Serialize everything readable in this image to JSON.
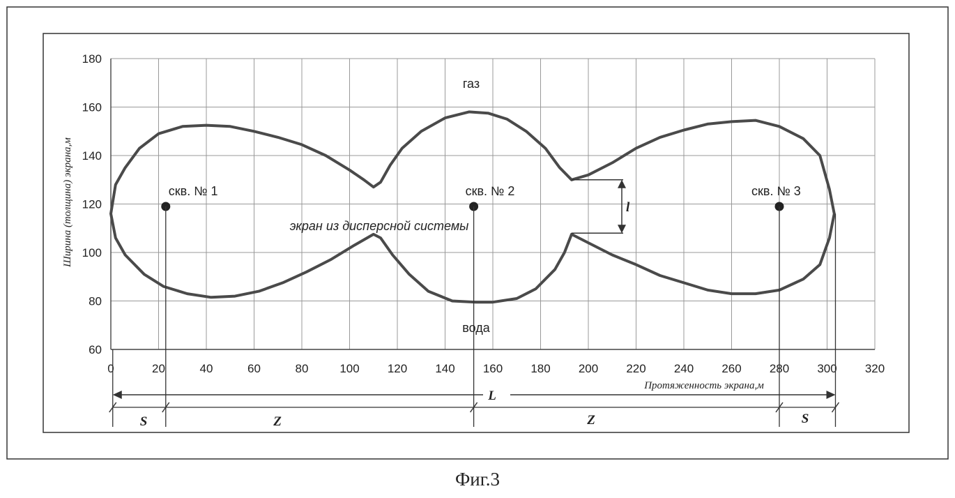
{
  "caption": "Фиг.3",
  "chart_data": {
    "type": "line",
    "xlabel": "Протяженность экрана,м",
    "ylabel": "Ширина (толщина) экрана,м",
    "xlim": [
      0,
      320
    ],
    "ylim": [
      60,
      180
    ],
    "xticks": [
      0,
      20,
      40,
      60,
      80,
      100,
      120,
      140,
      160,
      180,
      200,
      220,
      240,
      260,
      280,
      300,
      320
    ],
    "yticks": [
      60,
      80,
      100,
      120,
      140,
      160,
      180
    ],
    "grid": true,
    "outline": {
      "upper": [
        [
          0,
          116
        ],
        [
          2,
          128
        ],
        [
          6,
          135
        ],
        [
          12,
          143
        ],
        [
          20,
          149
        ],
        [
          30,
          152
        ],
        [
          40,
          152.5
        ],
        [
          50,
          152
        ],
        [
          60,
          150
        ],
        [
          70,
          147.5
        ],
        [
          80,
          144.5
        ],
        [
          90,
          140
        ],
        [
          100,
          134
        ],
        [
          106,
          130
        ],
        [
          110,
          127
        ],
        [
          113,
          129
        ],
        [
          117,
          136
        ],
        [
          122,
          143
        ],
        [
          130,
          150
        ],
        [
          140,
          155.5
        ],
        [
          150,
          158
        ],
        [
          158,
          157.5
        ],
        [
          166,
          155
        ],
        [
          174,
          150
        ],
        [
          182,
          143
        ],
        [
          188,
          135
        ],
        [
          193,
          130
        ],
        [
          200,
          132
        ],
        [
          210,
          137
        ],
        [
          220,
          143
        ],
        [
          230,
          147.5
        ],
        [
          240,
          150.5
        ],
        [
          250,
          153
        ],
        [
          260,
          154
        ],
        [
          270,
          154.5
        ],
        [
          280,
          152
        ],
        [
          290,
          147
        ],
        [
          297,
          140
        ],
        [
          301,
          126
        ],
        [
          303,
          116
        ]
      ],
      "lower": [
        [
          0,
          116
        ],
        [
          2,
          106
        ],
        [
          6,
          99
        ],
        [
          14,
          91
        ],
        [
          22,
          86
        ],
        [
          32,
          83
        ],
        [
          42,
          81.5
        ],
        [
          52,
          82
        ],
        [
          62,
          84
        ],
        [
          72,
          87.5
        ],
        [
          82,
          92
        ],
        [
          92,
          97
        ],
        [
          102,
          103
        ],
        [
          110,
          107.5
        ],
        [
          113,
          106
        ],
        [
          118,
          99
        ],
        [
          125,
          91
        ],
        [
          133,
          84
        ],
        [
          143,
          80
        ],
        [
          153,
          79.5
        ],
        [
          160,
          79.5
        ],
        [
          170,
          81
        ],
        [
          178,
          85
        ],
        [
          186,
          93
        ],
        [
          190,
          100
        ],
        [
          193,
          107.5
        ],
        [
          200,
          104
        ],
        [
          210,
          99
        ],
        [
          220,
          95
        ],
        [
          230,
          90.5
        ],
        [
          240,
          87.5
        ],
        [
          250,
          84.5
        ],
        [
          260,
          83
        ],
        [
          270,
          83
        ],
        [
          280,
          84.5
        ],
        [
          290,
          89
        ],
        [
          297,
          95
        ],
        [
          301,
          106
        ],
        [
          303,
          116
        ]
      ]
    },
    "wells": [
      {
        "label": "скв. № 1",
        "x": 23,
        "y": 119
      },
      {
        "label": "скв. № 2",
        "x": 152,
        "y": 119
      },
      {
        "label": "скв. № 3",
        "x": 280,
        "y": 119
      }
    ],
    "annotations": {
      "gas": "газ",
      "water": "вода",
      "screen": "экран из дисперсной системы",
      "neck_width": "l",
      "total_length": "L",
      "segment_s": "S",
      "segment_z": "Z"
    }
  }
}
